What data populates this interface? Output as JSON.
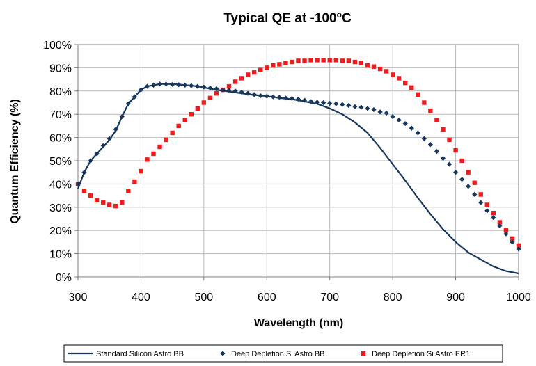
{
  "chart_data": {
    "type": "line",
    "title": {
      "main": "Typical QE at -100",
      "sup": "o",
      "tail": "C"
    },
    "xlabel": "Wavelength (nm)",
    "ylabel": "Quantum Efficiency (%)",
    "xlim": [
      300,
      1000
    ],
    "ylim": [
      0,
      100
    ],
    "x_ticks": [
      300,
      400,
      500,
      600,
      700,
      800,
      900,
      1000
    ],
    "y_ticks": [
      "0%",
      "10%",
      "20%",
      "30%",
      "40%",
      "50%",
      "60%",
      "70%",
      "80%",
      "90%",
      "100%"
    ],
    "grid": true,
    "legend_position": "bottom",
    "series": [
      {
        "name": "Standard Silicon Astro BB",
        "style": "line",
        "color": "#17375e",
        "x": [
          300,
          310,
          320,
          330,
          340,
          350,
          360,
          370,
          380,
          390,
          400,
          410,
          420,
          430,
          440,
          450,
          460,
          470,
          480,
          490,
          500,
          520,
          540,
          560,
          580,
          600,
          620,
          640,
          660,
          680,
          700,
          720,
          740,
          760,
          780,
          800,
          820,
          840,
          860,
          880,
          900,
          920,
          940,
          960,
          980,
          1000
        ],
        "values": [
          38,
          45,
          50,
          53,
          56,
          59,
          63,
          69,
          74.5,
          77.5,
          80.5,
          82,
          82.5,
          83,
          83,
          83,
          82.8,
          82.5,
          82.3,
          82,
          81.5,
          80.5,
          79.8,
          79,
          78.3,
          77.8,
          77,
          76.5,
          75.5,
          74.5,
          72.5,
          70,
          66.5,
          62,
          55.5,
          48.5,
          41.5,
          34,
          27,
          20.5,
          15,
          10.5,
          7.5,
          4.5,
          2.5,
          1.5
        ]
      },
      {
        "name": "Deep Depletion Si Astro BB",
        "style": "diamond",
        "color": "#17375e",
        "x": [
          300,
          310,
          320,
          330,
          340,
          350,
          360,
          370,
          380,
          390,
          400,
          410,
          420,
          430,
          440,
          450,
          460,
          470,
          480,
          490,
          500,
          510,
          520,
          530,
          540,
          550,
          560,
          570,
          580,
          590,
          600,
          610,
          620,
          630,
          640,
          650,
          660,
          670,
          680,
          690,
          700,
          710,
          720,
          730,
          740,
          750,
          760,
          770,
          780,
          790,
          800,
          810,
          820,
          830,
          840,
          850,
          860,
          870,
          880,
          890,
          900,
          910,
          920,
          930,
          940,
          950,
          960,
          970,
          980,
          990,
          1000
        ],
        "values": [
          40,
          45,
          50,
          53,
          56.5,
          59.5,
          63.5,
          69,
          74.5,
          77.5,
          80.5,
          82,
          82.5,
          83,
          83,
          82.8,
          82.7,
          82.5,
          82.3,
          82,
          81.7,
          81.3,
          81,
          80.5,
          80.3,
          80,
          79.5,
          79,
          78.5,
          78,
          77.8,
          77.5,
          77.3,
          77,
          76.8,
          76.5,
          76,
          75.5,
          75.2,
          75,
          74.7,
          74.5,
          74.2,
          73.8,
          73.3,
          73,
          72.5,
          72,
          71,
          70.5,
          69,
          67.5,
          66,
          64,
          62,
          59.5,
          57,
          54,
          51,
          48.5,
          45,
          42,
          39,
          35.5,
          32,
          28.5,
          25.5,
          22,
          18.5,
          15,
          12
        ]
      },
      {
        "name": "Deep Depletion Si Astro ER1",
        "style": "square",
        "color": "#ee1c1c",
        "x": [
          300,
          310,
          320,
          330,
          340,
          350,
          360,
          370,
          380,
          390,
          400,
          410,
          420,
          430,
          440,
          450,
          460,
          470,
          480,
          490,
          500,
          510,
          520,
          530,
          540,
          550,
          560,
          570,
          580,
          590,
          600,
          610,
          620,
          630,
          640,
          650,
          660,
          670,
          680,
          690,
          700,
          710,
          720,
          730,
          740,
          750,
          760,
          770,
          780,
          790,
          800,
          810,
          820,
          830,
          840,
          850,
          860,
          870,
          880,
          890,
          900,
          910,
          920,
          930,
          940,
          950,
          960,
          970,
          980,
          990,
          1000
        ],
        "values": [
          40,
          37,
          35,
          33,
          32,
          31,
          30.5,
          32,
          37,
          41,
          45.5,
          50.5,
          53,
          56,
          59,
          62,
          65,
          67.5,
          70,
          72.5,
          75,
          77,
          79,
          80.5,
          82,
          84,
          85.5,
          87,
          88,
          89,
          90,
          91,
          91.5,
          92,
          92.5,
          93,
          93,
          93.3,
          93.3,
          93.3,
          93.3,
          93.3,
          93,
          93,
          92.5,
          92,
          91,
          90.5,
          89.5,
          88.5,
          87,
          85.5,
          83.5,
          81.5,
          78.5,
          75,
          71.5,
          67.5,
          63.5,
          59,
          54.5,
          50,
          45,
          40.5,
          35.5,
          31,
          27.5,
          23.5,
          20,
          16.5,
          13.5
        ]
      }
    ]
  }
}
